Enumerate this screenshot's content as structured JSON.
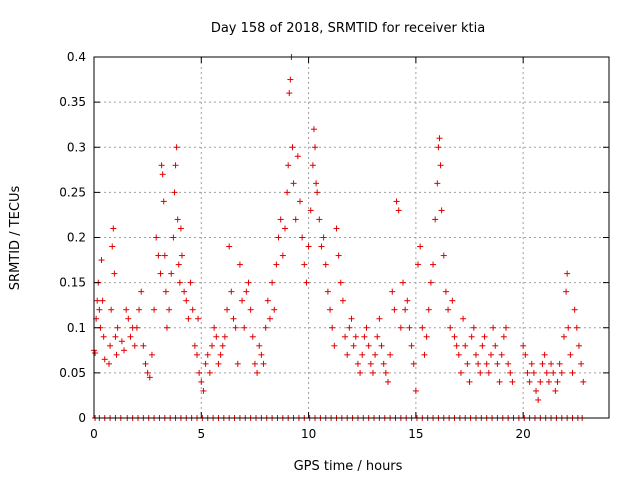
{
  "chart_data": {
    "type": "scatter",
    "title": "Day 158 of 2018, SRMTID for receiver ktia",
    "xlabel": "GPS time / hours",
    "ylabel": "SRMTID / TECUs",
    "xlim": [
      0,
      24
    ],
    "ylim": [
      0,
      0.4
    ],
    "xticks": [
      0,
      5,
      10,
      15,
      20
    ],
    "yticks": [
      0,
      0.05,
      0.1,
      0.15,
      0.2,
      0.25,
      0.3,
      0.35,
      0.4
    ],
    "xtick_labels": [
      "0",
      "5",
      "10",
      "15",
      "20"
    ],
    "ytick_labels": [
      "0",
      "0.05",
      "0.1",
      "0.15",
      "0.2",
      "0.25",
      "0.3",
      "0.35",
      "0.4"
    ],
    "grid": true,
    "marker": "+",
    "marker_color": "#e00000",
    "series": [
      {
        "name": "SRMTID",
        "points": [
          [
            0.0,
            0.075
          ],
          [
            0.05,
            0.072
          ],
          [
            0.1,
            0.11
          ],
          [
            0.15,
            0.13
          ],
          [
            0.2,
            0.15
          ],
          [
            0.25,
            0.12
          ],
          [
            0.3,
            0.1
          ],
          [
            0.35,
            0.175
          ],
          [
            0.4,
            0.13
          ],
          [
            0.45,
            0.09
          ],
          [
            0.5,
            0.065
          ],
          [
            0.7,
            0.06
          ],
          [
            0.75,
            0.08
          ],
          [
            0.8,
            0.12
          ],
          [
            0.85,
            0.19
          ],
          [
            0.9,
            0.21
          ],
          [
            0.95,
            0.16
          ],
          [
            1.0,
            0.09
          ],
          [
            1.05,
            0.07
          ],
          [
            1.1,
            0.1
          ],
          [
            1.3,
            0.085
          ],
          [
            1.4,
            0.075
          ],
          [
            1.5,
            0.12
          ],
          [
            1.6,
            0.11
          ],
          [
            1.7,
            0.09
          ],
          [
            1.8,
            0.1
          ],
          [
            1.9,
            0.08
          ],
          [
            2.0,
            0.1
          ],
          [
            2.1,
            0.12
          ],
          [
            2.2,
            0.14
          ],
          [
            2.3,
            0.08
          ],
          [
            2.4,
            0.06
          ],
          [
            2.5,
            0.05
          ],
          [
            2.6,
            0.045
          ],
          [
            2.7,
            0.07
          ],
          [
            2.8,
            0.12
          ],
          [
            2.9,
            0.2
          ],
          [
            3.0,
            0.18
          ],
          [
            3.1,
            0.16
          ],
          [
            3.15,
            0.28
          ],
          [
            3.2,
            0.27
          ],
          [
            3.25,
            0.24
          ],
          [
            3.3,
            0.18
          ],
          [
            3.35,
            0.14
          ],
          [
            3.4,
            0.1
          ],
          [
            3.5,
            0.12
          ],
          [
            3.6,
            0.16
          ],
          [
            3.7,
            0.2
          ],
          [
            3.75,
            0.25
          ],
          [
            3.8,
            0.28
          ],
          [
            3.85,
            0.3
          ],
          [
            3.9,
            0.22
          ],
          [
            3.95,
            0.17
          ],
          [
            4.0,
            0.15
          ],
          [
            4.05,
            0.21
          ],
          [
            4.1,
            0.18
          ],
          [
            4.2,
            0.14
          ],
          [
            4.3,
            0.13
          ],
          [
            4.4,
            0.11
          ],
          [
            4.5,
            0.15
          ],
          [
            4.6,
            0.12
          ],
          [
            4.7,
            0.08
          ],
          [
            4.8,
            0.07
          ],
          [
            4.85,
            0.11
          ],
          [
            4.9,
            0.05
          ],
          [
            5.0,
            0.04
          ],
          [
            5.1,
            0.03
          ],
          [
            5.2,
            0.06
          ],
          [
            5.3,
            0.07
          ],
          [
            5.4,
            0.05
          ],
          [
            5.5,
            0.08
          ],
          [
            5.6,
            0.1
          ],
          [
            5.7,
            0.09
          ],
          [
            5.8,
            0.06
          ],
          [
            5.9,
            0.07
          ],
          [
            6.0,
            0.08
          ],
          [
            6.1,
            0.09
          ],
          [
            6.2,
            0.12
          ],
          [
            6.3,
            0.19
          ],
          [
            6.4,
            0.14
          ],
          [
            6.5,
            0.11
          ],
          [
            6.6,
            0.1
          ],
          [
            6.7,
            0.06
          ],
          [
            6.8,
            0.17
          ],
          [
            6.9,
            0.13
          ],
          [
            7.0,
            0.1
          ],
          [
            7.1,
            0.14
          ],
          [
            7.2,
            0.15
          ],
          [
            7.3,
            0.12
          ],
          [
            7.4,
            0.09
          ],
          [
            7.5,
            0.06
          ],
          [
            7.6,
            0.05
          ],
          [
            7.7,
            0.08
          ],
          [
            7.8,
            0.07
          ],
          [
            7.9,
            0.06
          ],
          [
            8.0,
            0.1
          ],
          [
            8.1,
            0.13
          ],
          [
            8.2,
            0.11
          ],
          [
            8.3,
            0.15
          ],
          [
            8.4,
            0.12
          ],
          [
            8.5,
            0.17
          ],
          [
            8.6,
            0.2
          ],
          [
            8.7,
            0.22
          ],
          [
            8.8,
            0.18
          ],
          [
            8.9,
            0.21
          ],
          [
            9.0,
            0.25
          ],
          [
            9.05,
            0.28
          ],
          [
            9.1,
            0.36
          ],
          [
            9.15,
            0.375
          ],
          [
            9.2,
            0.4
          ],
          [
            9.25,
            0.3
          ],
          [
            9.3,
            0.26
          ],
          [
            9.4,
            0.22
          ],
          [
            9.5,
            0.29
          ],
          [
            9.6,
            0.24
          ],
          [
            9.7,
            0.2
          ],
          [
            9.8,
            0.17
          ],
          [
            9.9,
            0.15
          ],
          [
            10.0,
            0.19
          ],
          [
            10.1,
            0.23
          ],
          [
            10.2,
            0.28
          ],
          [
            10.25,
            0.32
          ],
          [
            10.3,
            0.3
          ],
          [
            10.35,
            0.26
          ],
          [
            10.4,
            0.25
          ],
          [
            10.5,
            0.22
          ],
          [
            10.6,
            0.19
          ],
          [
            10.7,
            0.2
          ],
          [
            10.8,
            0.17
          ],
          [
            10.9,
            0.14
          ],
          [
            11.0,
            0.12
          ],
          [
            11.1,
            0.1
          ],
          [
            11.2,
            0.08
          ],
          [
            11.3,
            0.21
          ],
          [
            11.4,
            0.18
          ],
          [
            11.5,
            0.15
          ],
          [
            11.6,
            0.13
          ],
          [
            11.7,
            0.09
          ],
          [
            11.8,
            0.07
          ],
          [
            11.9,
            0.1
          ],
          [
            12.0,
            0.11
          ],
          [
            12.1,
            0.08
          ],
          [
            12.2,
            0.09
          ],
          [
            12.3,
            0.06
          ],
          [
            12.4,
            0.05
          ],
          [
            12.5,
            0.07
          ],
          [
            12.6,
            0.09
          ],
          [
            12.7,
            0.1
          ],
          [
            12.8,
            0.08
          ],
          [
            12.9,
            0.06
          ],
          [
            13.0,
            0.05
          ],
          [
            13.1,
            0.07
          ],
          [
            13.2,
            0.09
          ],
          [
            13.3,
            0.11
          ],
          [
            13.4,
            0.08
          ],
          [
            13.5,
            0.06
          ],
          [
            13.6,
            0.05
          ],
          [
            13.7,
            0.04
          ],
          [
            13.8,
            0.07
          ],
          [
            13.9,
            0.14
          ],
          [
            14.0,
            0.12
          ],
          [
            14.1,
            0.24
          ],
          [
            14.2,
            0.23
          ],
          [
            14.3,
            0.1
          ],
          [
            14.4,
            0.15
          ],
          [
            14.5,
            0.12
          ],
          [
            14.6,
            0.13
          ],
          [
            14.7,
            0.1
          ],
          [
            14.8,
            0.08
          ],
          [
            14.9,
            0.06
          ],
          [
            15.0,
            0.03
          ],
          [
            15.1,
            0.17
          ],
          [
            15.2,
            0.19
          ],
          [
            15.3,
            0.1
          ],
          [
            15.4,
            0.07
          ],
          [
            15.5,
            0.09
          ],
          [
            15.6,
            0.12
          ],
          [
            15.7,
            0.15
          ],
          [
            15.8,
            0.17
          ],
          [
            15.9,
            0.22
          ],
          [
            16.0,
            0.26
          ],
          [
            16.05,
            0.3
          ],
          [
            16.1,
            0.31
          ],
          [
            16.15,
            0.28
          ],
          [
            16.2,
            0.23
          ],
          [
            16.3,
            0.18
          ],
          [
            16.4,
            0.14
          ],
          [
            16.5,
            0.12
          ],
          [
            16.6,
            0.1
          ],
          [
            16.7,
            0.13
          ],
          [
            16.8,
            0.09
          ],
          [
            16.9,
            0.08
          ],
          [
            17.0,
            0.07
          ],
          [
            17.1,
            0.05
          ],
          [
            17.2,
            0.11
          ],
          [
            17.3,
            0.08
          ],
          [
            17.4,
            0.06
          ],
          [
            17.5,
            0.04
          ],
          [
            17.6,
            0.09
          ],
          [
            17.7,
            0.1
          ],
          [
            17.8,
            0.07
          ],
          [
            17.9,
            0.06
          ],
          [
            18.0,
            0.05
          ],
          [
            18.1,
            0.08
          ],
          [
            18.2,
            0.09
          ],
          [
            18.3,
            0.06
          ],
          [
            18.4,
            0.05
          ],
          [
            18.5,
            0.07
          ],
          [
            18.6,
            0.1
          ],
          [
            18.7,
            0.08
          ],
          [
            18.8,
            0.06
          ],
          [
            18.9,
            0.04
          ],
          [
            19.0,
            0.07
          ],
          [
            19.1,
            0.09
          ],
          [
            19.2,
            0.1
          ],
          [
            19.3,
            0.06
          ],
          [
            19.4,
            0.05
          ],
          [
            19.5,
            0.04
          ],
          [
            20.0,
            0.08
          ],
          [
            20.1,
            0.07
          ],
          [
            20.2,
            0.05
          ],
          [
            20.3,
            0.04
          ],
          [
            20.4,
            0.06
          ],
          [
            20.5,
            0.05
          ],
          [
            20.6,
            0.03
          ],
          [
            20.7,
            0.02
          ],
          [
            20.8,
            0.04
          ],
          [
            20.9,
            0.06
          ],
          [
            21.0,
            0.07
          ],
          [
            21.1,
            0.05
          ],
          [
            21.2,
            0.04
          ],
          [
            21.3,
            0.06
          ],
          [
            21.4,
            0.05
          ],
          [
            21.5,
            0.03
          ],
          [
            21.6,
            0.04
          ],
          [
            21.7,
            0.06
          ],
          [
            21.8,
            0.05
          ],
          [
            21.9,
            0.09
          ],
          [
            22.0,
            0.14
          ],
          [
            22.05,
            0.16
          ],
          [
            22.1,
            0.1
          ],
          [
            22.2,
            0.07
          ],
          [
            22.3,
            0.05
          ],
          [
            22.4,
            0.12
          ],
          [
            22.5,
            0.1
          ],
          [
            22.6,
            0.08
          ],
          [
            22.7,
            0.06
          ],
          [
            22.8,
            0.04
          ]
        ]
      }
    ],
    "zero_markers": [
      0.05,
      0.25,
      0.5,
      0.75,
      1.0,
      1.25,
      1.55,
      1.8,
      2.05,
      2.3,
      2.55,
      2.8,
      3.05,
      3.3,
      3.55,
      3.8,
      4.05,
      4.3,
      4.55,
      4.8,
      5.05,
      5.3,
      5.55,
      5.8,
      6.05,
      6.3,
      6.55,
      6.8,
      7.05,
      7.3,
      7.55,
      7.8,
      8.05,
      8.3,
      8.55,
      8.8,
      9.05,
      9.3,
      9.55,
      9.8,
      10.05,
      10.3,
      10.55,
      10.8,
      11.05,
      11.3,
      11.55,
      11.8,
      12.05,
      12.3,
      12.55,
      12.8,
      13.05,
      13.3,
      13.55,
      13.8,
      14.05,
      14.3,
      14.55,
      14.8,
      15.05,
      15.3,
      15.55,
      15.8,
      16.05,
      16.3,
      16.55,
      16.8,
      17.05,
      17.3,
      17.55,
      17.8,
      18.05,
      18.3,
      18.55,
      18.8,
      19.05,
      19.3,
      19.55,
      19.8,
      20.05,
      20.3,
      20.55,
      20.8,
      21.05,
      21.3,
      21.55,
      21.8,
      22.05,
      22.3,
      22.55,
      22.75
    ]
  }
}
